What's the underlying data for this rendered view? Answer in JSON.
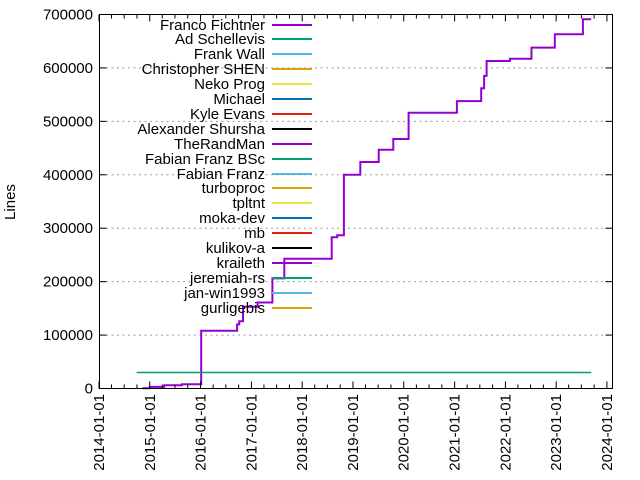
{
  "chart_data": {
    "type": "line",
    "title": "",
    "xlabel": "",
    "ylabel": "Lines",
    "x_range": [
      "2014-01-01",
      "2024-02-12"
    ],
    "ylim": [
      0,
      700000
    ],
    "x_tick_labels": [
      "2014-01-01",
      "2015-01-01",
      "2016-01-01",
      "2017-01-01",
      "2018-01-01",
      "2019-01-01",
      "2020-01-01",
      "2021-01-01",
      "2022-01-01",
      "2023-01-01",
      "2024-01-01"
    ],
    "y_tick_labels": [
      "0",
      "100000",
      "200000",
      "300000",
      "400000",
      "500000",
      "600000",
      "700000"
    ],
    "grid": {
      "horizontal": true,
      "vertical": false,
      "style": "dotted",
      "color": "#9c9c9c"
    },
    "legend_position": "top-inside-left",
    "axis_color": "#000000",
    "background_color": "#ffffff",
    "series": [
      {
        "name": "Franco Fichtner",
        "color": "#9400d3",
        "mode": "steps",
        "width": 2,
        "points": [
          [
            "2014-11-10",
            500
          ],
          [
            "2015-01-01",
            3000
          ],
          [
            "2015-04-15",
            6000
          ],
          [
            "2015-08-20",
            8000
          ],
          [
            "2016-01-06",
            108000
          ],
          [
            "2016-09-20",
            120000
          ],
          [
            "2016-10-05",
            126000
          ],
          [
            "2016-11-01",
            153000
          ],
          [
            "2017-02-14",
            161000
          ],
          [
            "2017-06-01",
            206000
          ],
          [
            "2017-08-25",
            243000
          ],
          [
            "2018-08-01",
            283000
          ],
          [
            "2018-09-10",
            287000
          ],
          [
            "2018-10-28",
            400000
          ],
          [
            "2019-02-23",
            424000
          ],
          [
            "2019-07-05",
            447000
          ],
          [
            "2019-10-18",
            467000
          ],
          [
            "2020-02-05",
            516000
          ],
          [
            "2021-01-17",
            538000
          ],
          [
            "2021-07-11",
            562000
          ],
          [
            "2021-08-01",
            585000
          ],
          [
            "2021-08-19",
            613000
          ],
          [
            "2022-02-02",
            617000
          ],
          [
            "2022-07-08",
            638000
          ],
          [
            "2022-12-22",
            663000
          ],
          [
            "2023-07-12",
            691000
          ],
          [
            "2023-09-10",
            691000
          ]
        ]
      },
      {
        "name": "Ad Schellevis",
        "color": "#009e73",
        "mode": "steps",
        "width": 1.5,
        "points": [
          [
            "2014-09-28",
            30000
          ],
          [
            "2023-09-10",
            30000
          ]
        ]
      },
      {
        "name": "Frank Wall",
        "color": "#56b4e9",
        "mode": "steps",
        "width": 1.5,
        "points": []
      },
      {
        "name": "Christopher SHEN",
        "color": "#e69f00",
        "mode": "steps",
        "width": 1.5,
        "points": []
      },
      {
        "name": "Neko Prog",
        "color": "#f0e442",
        "mode": "steps",
        "width": 1.5,
        "points": []
      },
      {
        "name": "Michael",
        "color": "#0072b2",
        "mode": "steps",
        "width": 1.5,
        "points": []
      },
      {
        "name": "Kyle Evans",
        "color": "#e51e10",
        "mode": "steps",
        "width": 1.5,
        "points": []
      },
      {
        "name": "Alexander Shursha",
        "color": "#000000",
        "mode": "steps",
        "width": 1.5,
        "points": []
      },
      {
        "name": "TheRandMan",
        "color": "#9400d3",
        "mode": "steps",
        "width": 1.5,
        "points": []
      },
      {
        "name": "Fabian Franz BSc",
        "color": "#009e73",
        "mode": "steps",
        "width": 1.5,
        "points": []
      },
      {
        "name": "Fabian Franz",
        "color": "#56b4e9",
        "mode": "steps",
        "width": 1.5,
        "points": []
      },
      {
        "name": "turboproc",
        "color": "#e69f00",
        "mode": "steps",
        "width": 1.5,
        "points": []
      },
      {
        "name": "tpltnt",
        "color": "#f0e442",
        "mode": "steps",
        "width": 1.5,
        "points": []
      },
      {
        "name": "moka-dev",
        "color": "#0072b2",
        "mode": "steps",
        "width": 1.5,
        "points": []
      },
      {
        "name": "mb",
        "color": "#e51e10",
        "mode": "steps",
        "width": 1.5,
        "points": []
      },
      {
        "name": "kulikov-a",
        "color": "#000000",
        "mode": "steps",
        "width": 1.5,
        "points": []
      },
      {
        "name": "kraileth",
        "color": "#9400d3",
        "mode": "steps",
        "width": 1.5,
        "points": []
      },
      {
        "name": "jeremiah-rs",
        "color": "#009e73",
        "mode": "steps",
        "width": 1.5,
        "points": []
      },
      {
        "name": "jan-win1993",
        "color": "#56b4e9",
        "mode": "steps",
        "width": 1.5,
        "points": []
      },
      {
        "name": "gurligebis",
        "color": "#e69f00",
        "mode": "steps",
        "width": 1.5,
        "points": []
      }
    ]
  }
}
